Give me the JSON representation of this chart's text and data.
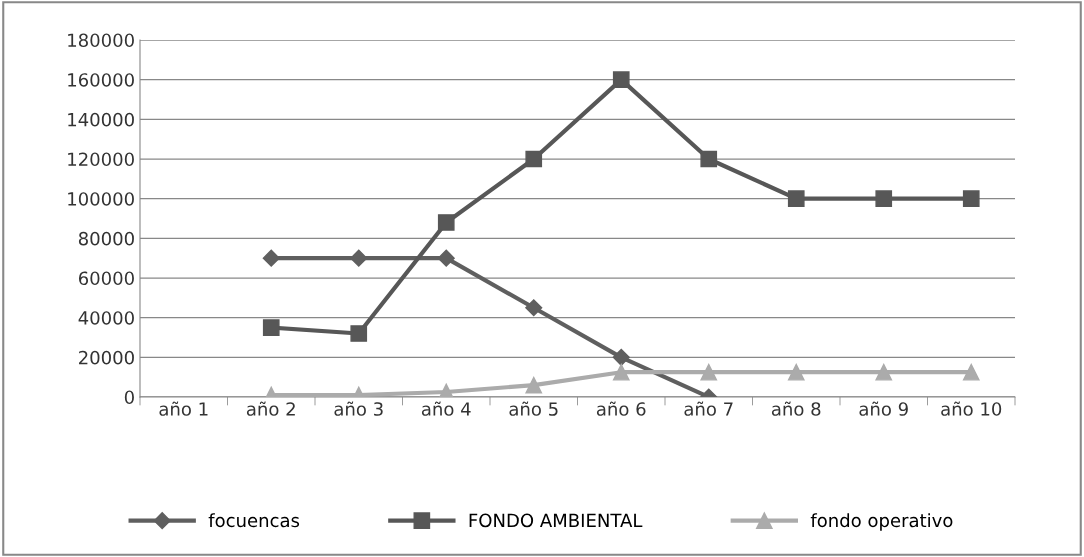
{
  "chart_data": {
    "type": "line",
    "categories": [
      "año 1",
      "año 2",
      "año 3",
      "año 4",
      "año 5",
      "año 6",
      "año 7",
      "año 8",
      "año 9",
      "año 10"
    ],
    "series": [
      {
        "name": "focuencas",
        "color": "#5f5f5f",
        "marker": "diamond",
        "values": [
          null,
          70000,
          70000,
          70000,
          45000,
          20000,
          0,
          null,
          null,
          null
        ]
      },
      {
        "name": "FONDO AMBIENTAL",
        "color": "#575757",
        "marker": "square",
        "values": [
          null,
          35000,
          32000,
          88000,
          120000,
          160000,
          120000,
          100000,
          100000,
          100000
        ]
      },
      {
        "name": "fondo operativo",
        "color": "#ababab",
        "marker": "triangle",
        "values": [
          null,
          1000,
          1000,
          2500,
          6000,
          12500,
          12500,
          12500,
          12500,
          12500
        ]
      }
    ],
    "ylim": [
      0,
      180000
    ],
    "yticks": [
      0,
      20000,
      40000,
      60000,
      80000,
      100000,
      120000,
      140000,
      160000,
      180000
    ],
    "grid": "y",
    "legend": "bottom",
    "line_style": "solid"
  }
}
